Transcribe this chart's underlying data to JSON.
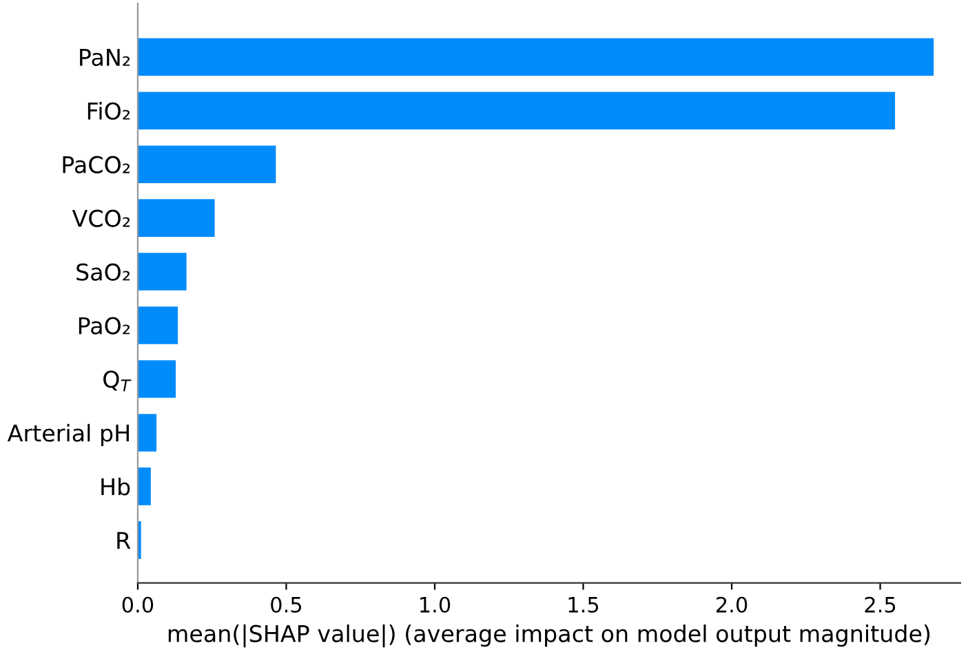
{
  "chart_data": {
    "type": "bar",
    "orientation": "horizontal",
    "xlabel": "mean(|SHAP value|) (average impact on model output magnitude)",
    "categories": [
      "PaN₂",
      "FiO₂",
      "PaCO₂",
      "VCO₂",
      "SaO₂",
      "PaO₂",
      "Q$_{T}$",
      "Arterial pH",
      "Hb",
      "R"
    ],
    "values": [
      2.68,
      2.55,
      0.465,
      0.259,
      0.164,
      0.135,
      0.128,
      0.063,
      0.044,
      0.011
    ],
    "color": "#008bfb",
    "xlim": [
      0,
      2.77
    ],
    "xticks": [
      {
        "value": 0,
        "label": "0.0"
      },
      0.5,
      {
        "value": 1,
        "label": "1.0"
      },
      1.5,
      {
        "value": 2,
        "label": "2.0"
      },
      2.5
    ],
    "grid": false
  }
}
